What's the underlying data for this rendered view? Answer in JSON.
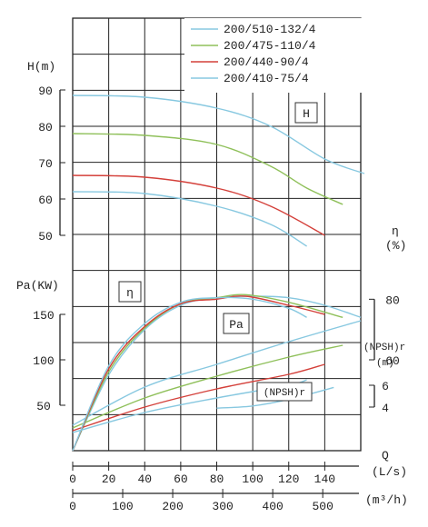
{
  "chart_data": {
    "type": "line",
    "axes": {
      "head": {
        "label": "H(m)",
        "ticks": [
          50,
          60,
          70,
          80,
          90
        ],
        "range": [
          50,
          90
        ]
      },
      "power": {
        "label": "Pa(KW)",
        "ticks": [
          50,
          100,
          150
        ],
        "range": [
          0,
          200
        ]
      },
      "efficiency": {
        "label": "η",
        "unit": "(%)",
        "ticks": [
          60,
          80
        ],
        "range": [
          30,
          90
        ]
      },
      "npsh": {
        "label": "(NPSH)r",
        "unit": "(m)",
        "ticks": [
          4,
          6
        ],
        "range": [
          0,
          10
        ]
      },
      "flow_ls": {
        "label": "(L/s)",
        "ticks": [
          0,
          20,
          40,
          60,
          80,
          100,
          120,
          140
        ],
        "range": [
          0,
          160
        ]
      },
      "flow_m3h": {
        "label": "(m³/h)",
        "ticks": [
          0,
          100,
          200,
          300,
          400,
          500
        ]
      },
      "q_label": "Q"
    },
    "boxed_labels": {
      "head": "H",
      "efficiency": "η",
      "power": "Pa",
      "npsh": "(NPSH)r"
    },
    "series": [
      {
        "name": "200/510-132/4",
        "color": "#87c8e0",
        "head": [
          [
            0,
            88.5
          ],
          [
            40,
            88
          ],
          [
            80,
            85
          ],
          [
            110,
            80
          ],
          [
            140,
            71
          ],
          [
            162,
            67
          ]
        ],
        "efficiency": [
          [
            0,
            30
          ],
          [
            20,
            55
          ],
          [
            40,
            70
          ],
          [
            60,
            78
          ],
          [
            80,
            80.5
          ],
          [
            100,
            81
          ],
          [
            120,
            80.5
          ],
          [
            140,
            78
          ],
          [
            160,
            74
          ]
        ],
        "power": [
          [
            0,
            28
          ],
          [
            40,
            70
          ],
          [
            80,
            95
          ],
          [
            120,
            120
          ],
          [
            160,
            143
          ]
        ]
      },
      {
        "name": "200/475-110/4",
        "color": "#8fc05a",
        "head": [
          [
            0,
            78
          ],
          [
            40,
            77.5
          ],
          [
            80,
            75
          ],
          [
            110,
            69
          ],
          [
            130,
            63
          ],
          [
            150,
            58.5
          ]
        ],
        "efficiency": [
          [
            0,
            30
          ],
          [
            20,
            56
          ],
          [
            40,
            70.5
          ],
          [
            60,
            78.5
          ],
          [
            80,
            80.5
          ],
          [
            96,
            81.5
          ],
          [
            120,
            79
          ],
          [
            150,
            74
          ]
        ],
        "power": [
          [
            0,
            25
          ],
          [
            40,
            58
          ],
          [
            80,
            82
          ],
          [
            120,
            103
          ],
          [
            150,
            116
          ]
        ]
      },
      {
        "name": "200/440-90/4",
        "color": "#d4403a",
        "head": [
          [
            0,
            66.5
          ],
          [
            40,
            66
          ],
          [
            80,
            63
          ],
          [
            110,
            58
          ],
          [
            140,
            50
          ]
        ],
        "efficiency": [
          [
            0,
            30
          ],
          [
            20,
            57
          ],
          [
            40,
            71
          ],
          [
            60,
            78.5
          ],
          [
            80,
            80
          ],
          [
            96,
            81
          ],
          [
            120,
            78
          ],
          [
            140,
            75
          ]
        ],
        "power": [
          [
            0,
            22
          ],
          [
            40,
            48
          ],
          [
            80,
            68
          ],
          [
            120,
            84
          ],
          [
            140,
            95
          ]
        ]
      },
      {
        "name": "200/410-75/4",
        "color": "#87c8e0",
        "head": [
          [
            0,
            62
          ],
          [
            40,
            61.5
          ],
          [
            80,
            58
          ],
          [
            110,
            53
          ],
          [
            130,
            47
          ]
        ],
        "efficiency": [
          [
            0,
            30
          ],
          [
            20,
            58
          ],
          [
            40,
            72
          ],
          [
            60,
            79
          ],
          [
            80,
            80.5
          ],
          [
            100,
            80
          ],
          [
            120,
            77
          ],
          [
            130,
            74
          ]
        ],
        "power": [
          [
            0,
            20
          ],
          [
            40,
            42
          ],
          [
            80,
            58
          ],
          [
            120,
            72
          ],
          [
            130,
            78
          ]
        ]
      }
    ],
    "npsh_curve": {
      "color": "#87c8e0",
      "points": [
        [
          80,
          3.9
        ],
        [
          100,
          4.1
        ],
        [
          120,
          4.7
        ],
        [
          145,
          5.8
        ]
      ]
    }
  }
}
